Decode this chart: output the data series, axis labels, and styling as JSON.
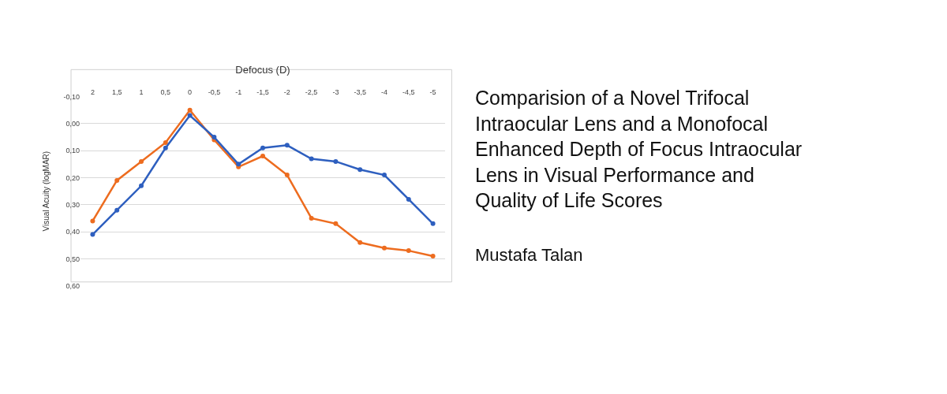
{
  "chart_data": {
    "type": "line",
    "title": "Comparision of a Novel Trifocal Intraocular Lens and a Monofocal Enhanced Depth of Focus Intraocular Lens in Visual Performance and Quality of Life Scores",
    "subtitle": "Mustafa Talan",
    "xlabel": "Defocus (D)",
    "ylabel": "Visual Acuity (logMAR)",
    "categories": [
      "2",
      "1,5",
      "1",
      "0,5",
      "0",
      "-0,5",
      "-1",
      "-1,5",
      "-2",
      "-2,5",
      "-3",
      "-3,5",
      "-4",
      "-4,5",
      "-5"
    ],
    "series": [
      {
        "color": "#2e5fbf",
        "values": [
          0.41,
          0.32,
          0.23,
          0.09,
          -0.03,
          0.05,
          0.15,
          0.09,
          0.08,
          0.13,
          0.14,
          0.17,
          0.19,
          0.28,
          0.37
        ]
      },
      {
        "color": "#ed6c1f",
        "values": [
          0.36,
          0.21,
          0.14,
          0.07,
          -0.05,
          0.06,
          0.16,
          0.12,
          0.19,
          0.35,
          0.37,
          0.44,
          0.46,
          0.47,
          0.49
        ]
      }
    ],
    "ylim": [
      0.6,
      -0.1
    ],
    "yticks": [
      {
        "value": -0.1,
        "label": "-0,10"
      },
      {
        "value": 0.0,
        "label": "0,00"
      },
      {
        "value": 0.1,
        "label": "0,10"
      },
      {
        "value": 0.2,
        "label": "0,20"
      },
      {
        "value": 0.3,
        "label": "0,30"
      },
      {
        "value": 0.4,
        "label": "0,40"
      },
      {
        "value": 0.5,
        "label": "0,50"
      },
      {
        "value": 0.6,
        "label": "0,60"
      }
    ],
    "grid": "y",
    "marker": "circle",
    "line_style": "solid"
  }
}
